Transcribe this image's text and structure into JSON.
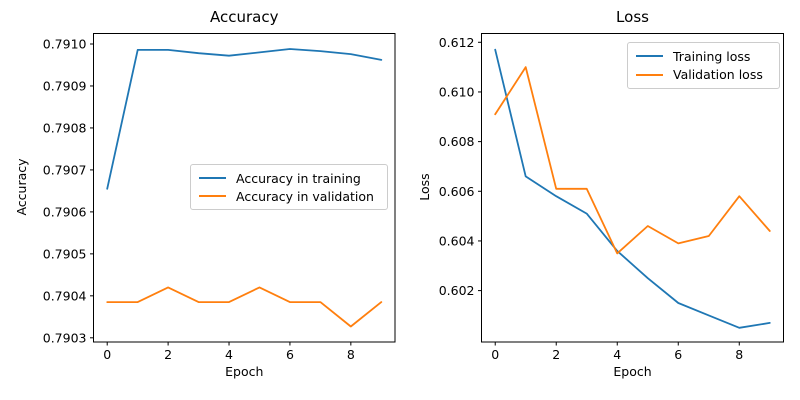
{
  "chart_data": [
    {
      "type": "line",
      "title": "Accuracy",
      "xlabel": "Epoch",
      "ylabel": "Accuracy",
      "x": [
        0,
        1,
        2,
        3,
        4,
        5,
        6,
        7,
        8,
        9
      ],
      "xlim": [
        -0.45,
        9.45
      ],
      "ylim": [
        0.79029,
        0.791025
      ],
      "xticks": [
        0,
        2,
        4,
        6,
        8
      ],
      "xtick_labels": [
        "0",
        "2",
        "4",
        "6",
        "8"
      ],
      "ytick_values": [
        0.7903,
        0.7904,
        0.7905,
        0.7906,
        0.7907,
        0.7908,
        0.7909,
        0.791
      ],
      "ytick_labels": [
        "0.7903",
        "0.7904",
        "0.7905",
        "0.7906",
        "0.7907",
        "0.7908",
        "0.7909",
        "0.7910"
      ],
      "grid": false,
      "legend_position": "center-right",
      "series": [
        {
          "name": "Accuracy in training",
          "color": "#1f77b4",
          "values": [
            0.790655,
            0.790986,
            0.790986,
            0.790978,
            0.790972,
            0.79098,
            0.790988,
            0.790983,
            0.790976,
            0.790962
          ]
        },
        {
          "name": "Accuracy in validation",
          "color": "#ff7f0e",
          "values": [
            0.790385,
            0.790385,
            0.79042,
            0.790385,
            0.790385,
            0.79042,
            0.790385,
            0.790385,
            0.790327,
            0.790385
          ]
        }
      ]
    },
    {
      "type": "line",
      "title": "Loss",
      "xlabel": "Epoch",
      "ylabel": "Loss",
      "x": [
        0,
        1,
        2,
        3,
        4,
        5,
        6,
        7,
        8,
        9
      ],
      "xlim": [
        -0.45,
        9.45
      ],
      "ylim": [
        0.59993,
        0.612354
      ],
      "xticks": [
        0,
        2,
        4,
        6,
        8
      ],
      "xtick_labels": [
        "0",
        "2",
        "4",
        "6",
        "8"
      ],
      "ytick_values": [
        0.602,
        0.604,
        0.606,
        0.608,
        0.61,
        0.612
      ],
      "ytick_labels": [
        "0.602",
        "0.604",
        "0.606",
        "0.608",
        "0.610",
        "0.612"
      ],
      "grid": false,
      "legend_position": "top-right",
      "series": [
        {
          "name": "Training loss",
          "color": "#1f77b4",
          "values": [
            0.6117,
            0.6066,
            0.6058,
            0.6051,
            0.6036,
            0.6025,
            0.6015,
            0.601,
            0.6005,
            0.6007
          ]
        },
        {
          "name": "Validation loss",
          "color": "#ff7f0e",
          "values": [
            0.6091,
            0.611,
            0.6061,
            0.6061,
            0.6035,
            0.6046,
            0.6039,
            0.6042,
            0.6058,
            0.6044
          ]
        }
      ]
    }
  ]
}
